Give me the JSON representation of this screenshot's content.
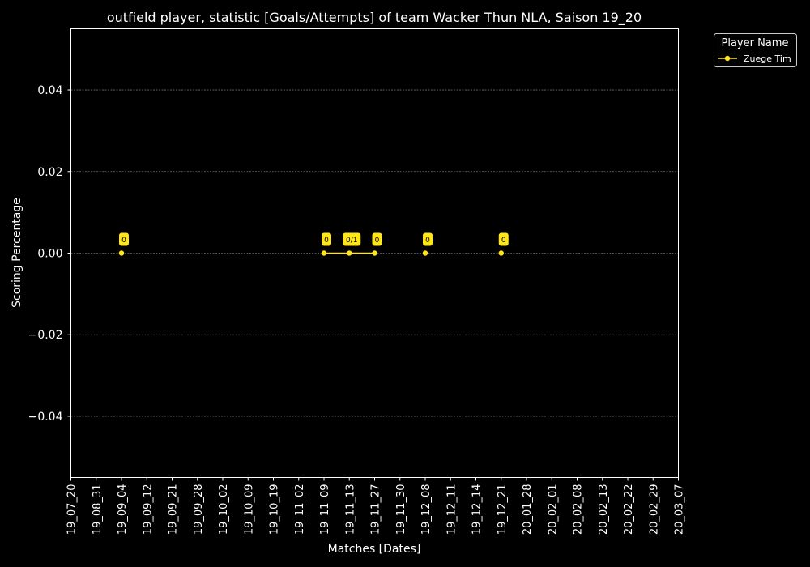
{
  "chart_data": {
    "type": "line",
    "title": "outfield player, statistic [Goals/Attempts] of team Wacker Thun NLA, Saison 19_20",
    "xlabel": "Matches [Dates]",
    "ylabel": "Scoring Percentage",
    "ylim": [
      -0.055,
      0.055
    ],
    "yticks": [
      "−0.04",
      "−0.02",
      "0.00",
      "0.02",
      "0.04"
    ],
    "ytick_values": [
      -0.04,
      -0.02,
      0.0,
      0.02,
      0.04
    ],
    "categories": [
      "19_07_20",
      "19_08_31",
      "19_09_04",
      "19_09_12",
      "19_09_21",
      "19_09_28",
      "19_10_02",
      "19_10_09",
      "19_10_19",
      "19_11_02",
      "19_11_09",
      "19_11_13",
      "19_11_27",
      "19_11_30",
      "19_12_08",
      "19_12_11",
      "19_12_14",
      "19_12_21",
      "20_01_28",
      "20_02_01",
      "20_02_08",
      "20_02_13",
      "20_02_22",
      "20_02_29",
      "20_03_07"
    ],
    "grid": true,
    "legend": {
      "title": "Player Name",
      "position": "outside-top-right"
    },
    "series": [
      {
        "name": "Zuege Tim",
        "color": "#ffe61a",
        "segments": [
          [
            {
              "x": "19_09_04",
              "y": 0.0,
              "label": "0"
            }
          ],
          [
            {
              "x": "19_11_09",
              "y": 0.0,
              "label": "0"
            },
            {
              "x": "19_11_13",
              "y": 0.0,
              "label": "0/1"
            },
            {
              "x": "19_11_27",
              "y": 0.0,
              "label": "0"
            }
          ],
          [
            {
              "x": "19_12_08",
              "y": 0.0,
              "label": "0"
            }
          ],
          [
            {
              "x": "19_12_21",
              "y": 0.0,
              "label": "0"
            }
          ]
        ]
      }
    ]
  }
}
